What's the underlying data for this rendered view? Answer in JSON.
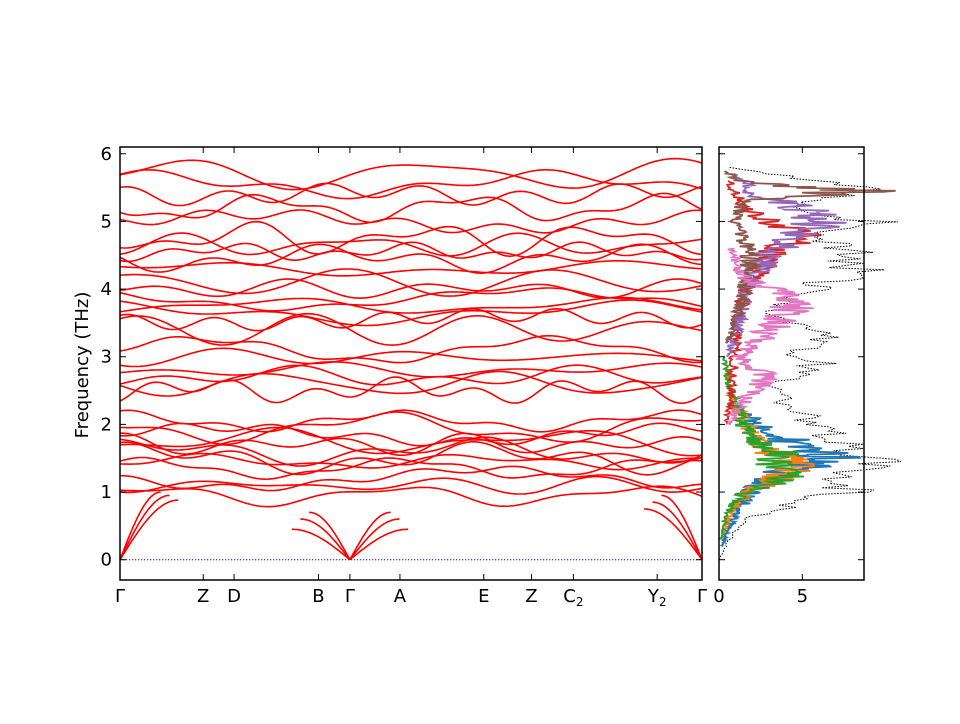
{
  "chart_data": [
    {
      "type": "line",
      "title": "",
      "xlabel": "",
      "ylabel": "Frequency (THz)",
      "ylim": [
        -0.3,
        6.1
      ],
      "yticks": [
        0,
        1,
        2,
        3,
        4,
        5,
        6
      ],
      "grid": false,
      "legend": "none",
      "band_color": "#ff0000",
      "zero_line_color": "#0000ff",
      "kpath_xlim": [
        0,
        1
      ],
      "kpoints": [
        {
          "label": "Γ",
          "sub": "",
          "x": 0.0
        },
        {
          "label": "Z",
          "sub": "",
          "x": 0.143
        },
        {
          "label": "D",
          "sub": "",
          "x": 0.196
        },
        {
          "label": "B",
          "sub": "",
          "x": 0.341
        },
        {
          "label": "Γ",
          "sub": "",
          "x": 0.395
        },
        {
          "label": "A",
          "sub": "",
          "x": 0.481
        },
        {
          "label": "E",
          "sub": "",
          "x": 0.625
        },
        {
          "label": "Z",
          "sub": "",
          "x": 0.707
        },
        {
          "label": "C",
          "sub": "2",
          "x": 0.779
        },
        {
          "label": "Y",
          "sub": "2",
          "x": 0.923
        },
        {
          "label": "Γ",
          "sub": "",
          "x": 1.0
        }
      ],
      "acoustic_nodes": [
        {
          "x": 0.0,
          "ends": [
            1.0,
            0.95,
            0.88
          ]
        },
        {
          "x": 0.395,
          "ends": [
            0.7,
            0.6,
            0.45
          ]
        },
        {
          "x": 1.0,
          "ends": [
            0.95,
            0.85,
            0.75
          ]
        }
      ],
      "optical_band_levels": [
        0.95,
        1.1,
        1.2,
        1.35,
        1.45,
        1.5,
        1.6,
        1.7,
        1.75,
        1.85,
        1.95,
        2.05,
        2.5,
        2.6,
        2.7,
        2.8,
        3.0,
        3.1,
        3.4,
        3.55,
        3.65,
        3.75,
        3.85,
        4.0,
        4.1,
        4.3,
        4.45,
        4.55,
        4.65,
        4.75,
        5.0,
        5.2,
        5.4,
        5.55,
        5.7
      ]
    },
    {
      "type": "line",
      "title": "",
      "xlabel": "",
      "ylabel": "",
      "xlim": [
        0,
        8.7
      ],
      "xticks": [
        0,
        5
      ],
      "ylim": [
        -0.3,
        6.1
      ],
      "grid": false,
      "legend": "none",
      "total_dos_style": "dotted",
      "total_dos_color": "#000000",
      "series": [
        {
          "color": "#1f77b4",
          "freq": [
            0.2,
            0.6,
            0.9,
            1.1,
            1.3,
            1.5,
            1.7,
            1.9,
            2.1,
            2.3
          ],
          "dos": [
            0.2,
            0.8,
            1.6,
            2.4,
            4.0,
            6.6,
            4.5,
            3.3,
            1.8,
            0.7
          ]
        },
        {
          "color": "#ff7f0e",
          "freq": [
            0.3,
            0.7,
            1.0,
            1.2,
            1.4,
            1.6,
            1.8,
            2.0,
            2.4,
            2.8
          ],
          "dos": [
            0.1,
            0.7,
            1.8,
            3.5,
            4.8,
            3.0,
            2.2,
            1.6,
            0.8,
            0.5
          ]
        },
        {
          "color": "#2ca02c",
          "freq": [
            0.3,
            0.7,
            1.0,
            1.2,
            1.4,
            1.6,
            1.8,
            2.2,
            2.6,
            3.0
          ],
          "dos": [
            0.1,
            0.5,
            1.5,
            4.2,
            3.3,
            3.7,
            1.8,
            1.2,
            0.6,
            0.3
          ]
        },
        {
          "color": "#d62728",
          "freq": [
            2.0,
            2.5,
            3.0,
            3.5,
            4.0,
            4.5,
            4.8,
            5.2,
            5.6
          ],
          "dos": [
            0.4,
            0.8,
            0.9,
            1.1,
            1.6,
            3.2,
            4.7,
            1.5,
            0.6
          ]
        },
        {
          "color": "#9467bd",
          "freq": [
            3.0,
            3.5,
            4.0,
            4.5,
            4.8,
            5.1,
            5.4,
            5.7
          ],
          "dos": [
            0.6,
            1.2,
            1.7,
            3.0,
            4.8,
            6.3,
            2.0,
            1.0
          ]
        },
        {
          "color": "#8c564b",
          "freq": [
            3.2,
            3.8,
            4.4,
            5.0,
            5.3,
            5.45,
            5.6,
            5.75
          ],
          "dos": [
            0.5,
            1.4,
            2.0,
            1.0,
            1.5,
            8.2,
            1.2,
            0.4
          ]
        },
        {
          "color": "#e377c2",
          "freq": [
            2.0,
            2.4,
            2.7,
            3.0,
            3.4,
            3.8,
            4.2,
            4.6
          ],
          "dos": [
            0.6,
            1.6,
            2.9,
            1.2,
            3.1,
            4.7,
            1.4,
            0.7
          ]
        }
      ],
      "total_dos": {
        "freq": [
          0.0,
          0.3,
          0.6,
          0.9,
          1.0,
          1.2,
          1.5,
          1.7,
          2.0,
          2.3,
          2.6,
          2.9,
          3.1,
          3.3,
          3.6,
          4.0,
          4.3,
          4.6,
          4.8,
          5.0,
          5.2,
          5.5,
          5.8
        ],
        "dos": [
          0.0,
          0.6,
          1.8,
          5.5,
          8.2,
          7.0,
          9.5,
          7.2,
          5.8,
          4.0,
          3.4,
          6.0,
          4.5,
          7.5,
          3.2,
          5.5,
          8.5,
          7.5,
          6.8,
          9.0,
          5.0,
          8.5,
          0.6
        ]
      }
    }
  ]
}
